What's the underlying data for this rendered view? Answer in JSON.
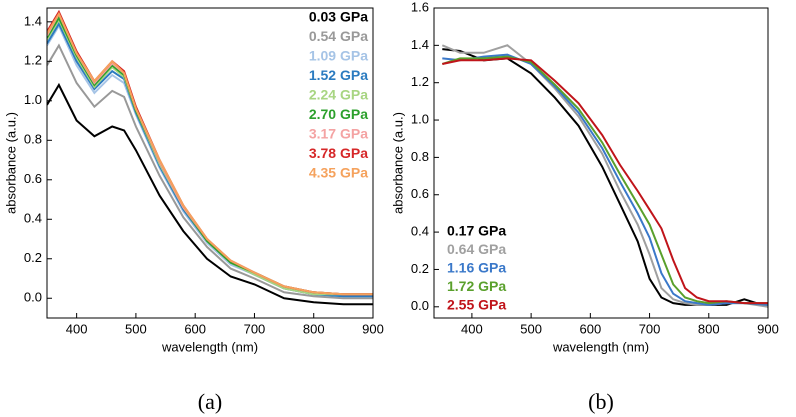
{
  "chart_data": [
    {
      "type": "line",
      "caption": "(a)",
      "xlabel": "wavelength (nm)",
      "ylabel": "absorbance (a.u.)",
      "xlim": [
        350,
        900
      ],
      "xticks": [
        400,
        500,
        600,
        700,
        800,
        900
      ],
      "ylim": [
        -0.1,
        1.47
      ],
      "yticks": [
        {
          "value": 0,
          "label": "0.0"
        },
        0.2,
        0.4,
        0.6,
        0.8,
        {
          "value": 1,
          "label": "1.0"
        },
        1.2,
        1.4
      ],
      "legend": "upper right",
      "x": [
        350,
        370,
        400,
        430,
        460,
        480,
        500,
        540,
        580,
        620,
        660,
        700,
        750,
        800,
        850,
        900
      ],
      "series": [
        {
          "name": "0.03 GPa",
          "color": "#000000",
          "values": [
            0.98,
            1.08,
            0.9,
            0.82,
            0.87,
            0.85,
            0.75,
            0.52,
            0.34,
            0.2,
            0.11,
            0.07,
            0.0,
            -0.02,
            -0.03,
            -0.03
          ]
        },
        {
          "name": "0.54 GPa",
          "color": "#999999",
          "values": [
            1.18,
            1.28,
            1.09,
            0.97,
            1.05,
            1.02,
            0.87,
            0.62,
            0.41,
            0.26,
            0.15,
            0.1,
            0.03,
            0.01,
            0.0,
            0.0
          ]
        },
        {
          "name": "1.09 GPa",
          "color": "#a6c4e6",
          "values": [
            1.28,
            1.38,
            1.18,
            1.04,
            1.13,
            1.09,
            0.93,
            0.66,
            0.44,
            0.28,
            0.17,
            0.12,
            0.05,
            0.02,
            0.01,
            0.01
          ]
        },
        {
          "name": "1.52 GPa",
          "color": "#2b7bc0",
          "values": [
            1.29,
            1.39,
            1.2,
            1.06,
            1.15,
            1.11,
            0.94,
            0.67,
            0.45,
            0.29,
            0.18,
            0.12,
            0.05,
            0.02,
            0.01,
            0.01
          ]
        },
        {
          "name": "2.24 GPa",
          "color": "#a8d582",
          "values": [
            1.31,
            1.41,
            1.22,
            1.07,
            1.17,
            1.12,
            0.95,
            0.68,
            0.46,
            0.29,
            0.18,
            0.12,
            0.05,
            0.02,
            0.02,
            0.02
          ]
        },
        {
          "name": "2.70 GPa",
          "color": "#2ca02c",
          "values": [
            1.32,
            1.42,
            1.23,
            1.08,
            1.18,
            1.13,
            0.95,
            0.69,
            0.46,
            0.29,
            0.18,
            0.13,
            0.06,
            0.03,
            0.02,
            0.02
          ]
        },
        {
          "name": "3.17 GPa",
          "color": "#f4a3a3",
          "values": [
            1.33,
            1.44,
            1.24,
            1.09,
            1.19,
            1.14,
            0.96,
            0.69,
            0.46,
            0.3,
            0.19,
            0.13,
            0.06,
            0.03,
            0.02,
            0.02
          ]
        },
        {
          "name": "3.78 GPa",
          "color": "#d62728",
          "values": [
            1.35,
            1.45,
            1.25,
            1.1,
            1.2,
            1.15,
            0.97,
            0.7,
            0.47,
            0.3,
            0.19,
            0.13,
            0.06,
            0.03,
            0.02,
            0.02
          ]
        },
        {
          "name": "4.35 GPa",
          "color": "#f5a25d",
          "values": [
            1.34,
            1.44,
            1.24,
            1.1,
            1.2,
            1.14,
            0.96,
            0.7,
            0.47,
            0.3,
            0.19,
            0.13,
            0.06,
            0.03,
            0.02,
            0.02
          ]
        }
      ]
    },
    {
      "type": "line",
      "caption": "(b)",
      "xlabel": "wavelength (nm)",
      "ylabel": "absorbance (a.u.)",
      "xlim": [
        336,
        900
      ],
      "xticks": [
        400,
        500,
        600,
        700,
        800,
        900
      ],
      "ylim": [
        -0.06,
        1.6
      ],
      "yticks": [
        {
          "value": 0,
          "label": "0.0"
        },
        0.2,
        0.4,
        0.6,
        0.8,
        {
          "value": 1,
          "label": "1.0"
        },
        1.2,
        1.4,
        1.6
      ],
      "legend": "lower left",
      "x": [
        350,
        380,
        420,
        460,
        500,
        540,
        580,
        620,
        650,
        680,
        700,
        720,
        740,
        760,
        780,
        800,
        830,
        860,
        900
      ],
      "series": [
        {
          "name": "0.17 GPa",
          "color": "#000000",
          "values": [
            1.38,
            1.37,
            1.32,
            1.33,
            1.25,
            1.12,
            0.97,
            0.75,
            0.55,
            0.35,
            0.15,
            0.05,
            0.02,
            0.01,
            0.01,
            0.01,
            0.01,
            0.04,
            0.0
          ]
        },
        {
          "name": "0.64 GPa",
          "color": "#a0a0a0",
          "values": [
            1.4,
            1.36,
            1.36,
            1.4,
            1.3,
            1.17,
            1.02,
            0.82,
            0.62,
            0.44,
            0.28,
            0.1,
            0.04,
            0.02,
            0.01,
            0.01,
            0.02,
            0.02,
            0.0
          ]
        },
        {
          "name": "1.16 GPa",
          "color": "#3a78c9",
          "values": [
            1.33,
            1.32,
            1.34,
            1.35,
            1.3,
            1.18,
            1.04,
            0.85,
            0.67,
            0.5,
            0.37,
            0.18,
            0.07,
            0.03,
            0.02,
            0.01,
            0.02,
            0.02,
            0.01
          ]
        },
        {
          "name": "1.72 GPa",
          "color": "#5aa02c",
          "values": [
            1.3,
            1.33,
            1.33,
            1.34,
            1.31,
            1.19,
            1.06,
            0.88,
            0.71,
            0.55,
            0.44,
            0.28,
            0.12,
            0.05,
            0.03,
            0.02,
            0.03,
            0.02,
            0.02
          ]
        },
        {
          "name": "2.55 GPa",
          "color": "#c0141a",
          "values": [
            1.3,
            1.32,
            1.32,
            1.33,
            1.32,
            1.21,
            1.09,
            0.92,
            0.76,
            0.62,
            0.52,
            0.42,
            0.25,
            0.1,
            0.05,
            0.03,
            0.03,
            0.02,
            0.02
          ]
        }
      ]
    }
  ]
}
